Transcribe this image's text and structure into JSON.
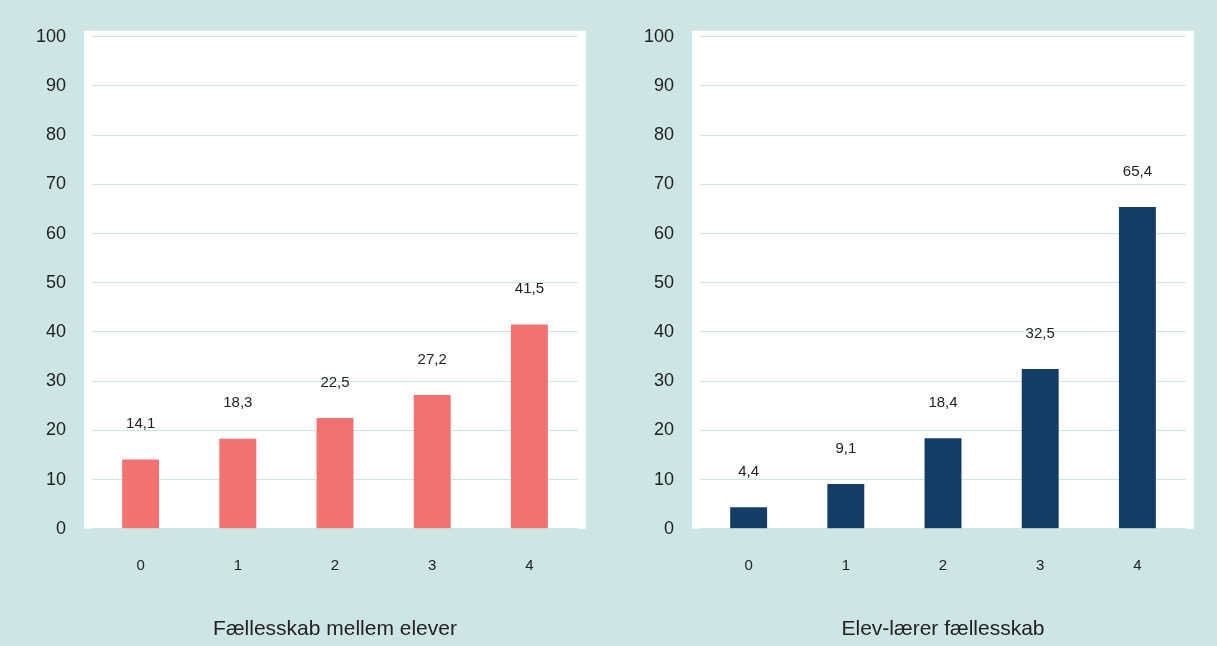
{
  "chart_data": [
    {
      "type": "bar",
      "xlabel": "Fællesskab mellem elever",
      "categories": [
        "0",
        "1",
        "2",
        "3",
        "4"
      ],
      "values": [
        14.1,
        18.3,
        22.5,
        27.2,
        41.5
      ],
      "value_labels": [
        "14,1",
        "18,3",
        "22,5",
        "27,2",
        "41,5"
      ],
      "color": "#f27171",
      "ylim": [
        0,
        100
      ],
      "yticks": [
        0,
        10,
        20,
        30,
        40,
        50,
        60,
        70,
        80,
        90,
        100
      ],
      "grid": "y"
    },
    {
      "type": "bar",
      "xlabel": "Elev-lærer fællesskab",
      "categories": [
        "0",
        "1",
        "2",
        "3",
        "4"
      ],
      "values": [
        4.4,
        9.1,
        18.4,
        32.5,
        65.4
      ],
      "value_labels": [
        "4,4",
        "9,1",
        "18,4",
        "32,5",
        "65,4"
      ],
      "color": "#143d66",
      "ylim": [
        0,
        100
      ],
      "yticks": [
        0,
        10,
        20,
        30,
        40,
        50,
        60,
        70,
        80,
        90,
        100
      ],
      "grid": "y"
    }
  ]
}
